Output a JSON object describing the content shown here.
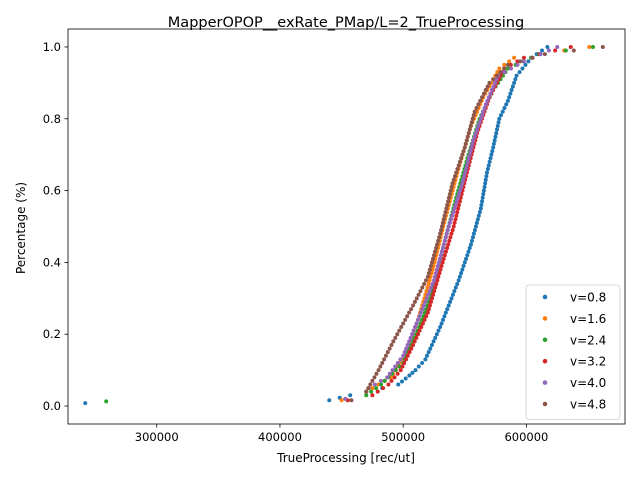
{
  "chart_data": {
    "type": "scatter",
    "title": "MapperOPOP__exRate_PMap/L=2_TrueProcessing",
    "xlabel": "TrueProcessing [rec/ut]",
    "ylabel": "Percentage (%)",
    "xlim": [
      228000,
      680000
    ],
    "ylim": [
      -0.05,
      1.05
    ],
    "xticks": [
      300000,
      400000,
      500000,
      600000
    ],
    "xtick_labels": [
      "300000",
      "400000",
      "500000",
      "600000"
    ],
    "yticks": [
      0.0,
      0.2,
      0.4,
      0.6,
      0.8,
      1.0
    ],
    "ytick_labels": [
      "0.0",
      "0.2",
      "0.4",
      "0.6",
      "0.8",
      "1.0"
    ],
    "grid": false,
    "legend_position": "bottom-right",
    "series": [
      {
        "name": "v=0.8",
        "color": "#1f77b4",
        "anchors": [
          [
            242000,
            0.008
          ],
          [
            440000,
            0.016
          ],
          [
            457000,
            0.03
          ],
          [
            496000,
            0.06
          ],
          [
            505000,
            0.085
          ],
          [
            510000,
            0.1
          ],
          [
            518000,
            0.13
          ],
          [
            530000,
            0.22
          ],
          [
            545000,
            0.35
          ],
          [
            555000,
            0.45
          ],
          [
            563000,
            0.55
          ],
          [
            568000,
            0.65
          ],
          [
            573000,
            0.72
          ],
          [
            578000,
            0.8
          ],
          [
            585000,
            0.85
          ],
          [
            592000,
            0.92
          ],
          [
            604000,
            0.97
          ],
          [
            617000,
            1.0
          ]
        ]
      },
      {
        "name": "v=1.6",
        "color": "#ff7f0e",
        "anchors": [
          [
            450000,
            0.016
          ],
          [
            470000,
            0.04
          ],
          [
            490000,
            0.08
          ],
          [
            502000,
            0.15
          ],
          [
            512000,
            0.24
          ],
          [
            524000,
            0.38
          ],
          [
            534000,
            0.52
          ],
          [
            544000,
            0.65
          ],
          [
            555000,
            0.78
          ],
          [
            565000,
            0.86
          ],
          [
            578000,
            0.94
          ],
          [
            590000,
            0.97
          ],
          [
            651000,
            1.0
          ]
        ]
      },
      {
        "name": "v=2.4",
        "color": "#2ca02c",
        "anchors": [
          [
            259000,
            0.013
          ],
          [
            470000,
            0.03
          ],
          [
            482000,
            0.06
          ],
          [
            500000,
            0.12
          ],
          [
            513000,
            0.22
          ],
          [
            522000,
            0.3
          ],
          [
            533000,
            0.45
          ],
          [
            543000,
            0.58
          ],
          [
            553000,
            0.7
          ],
          [
            562000,
            0.8
          ],
          [
            573000,
            0.88
          ],
          [
            585000,
            0.94
          ],
          [
            610000,
            0.98
          ],
          [
            654000,
            1.0
          ]
        ]
      },
      {
        "name": "v=3.2",
        "color": "#d62728",
        "anchors": [
          [
            455000,
            0.016
          ],
          [
            475000,
            0.03
          ],
          [
            488000,
            0.06
          ],
          [
            498000,
            0.1
          ],
          [
            508000,
            0.17
          ],
          [
            520000,
            0.26
          ],
          [
            532000,
            0.4
          ],
          [
            541000,
            0.5
          ],
          [
            551000,
            0.64
          ],
          [
            560000,
            0.76
          ],
          [
            570000,
            0.86
          ],
          [
            582000,
            0.94
          ],
          [
            598000,
            0.97
          ],
          [
            636000,
            1.0
          ]
        ]
      },
      {
        "name": "v=4.0",
        "color": "#9467bd",
        "anchors": [
          [
            453000,
            0.02
          ],
          [
            472000,
            0.05
          ],
          [
            487000,
            0.08
          ],
          [
            500000,
            0.14
          ],
          [
            512000,
            0.24
          ],
          [
            525000,
            0.35
          ],
          [
            537000,
            0.5
          ],
          [
            548000,
            0.62
          ],
          [
            557000,
            0.74
          ],
          [
            567000,
            0.84
          ],
          [
            577000,
            0.92
          ],
          [
            598000,
            0.96
          ],
          [
            625000,
            1.0
          ]
        ]
      },
      {
        "name": "v=4.8",
        "color": "#8c564b",
        "anchors": [
          [
            458000,
            0.016
          ],
          [
            470000,
            0.04
          ],
          [
            480000,
            0.1
          ],
          [
            492000,
            0.18
          ],
          [
            508000,
            0.28
          ],
          [
            520000,
            0.36
          ],
          [
            530000,
            0.48
          ],
          [
            540000,
            0.62
          ],
          [
            550000,
            0.72
          ],
          [
            558000,
            0.82
          ],
          [
            570000,
            0.9
          ],
          [
            585000,
            0.95
          ],
          [
            615000,
            0.98
          ],
          [
            662000,
            1.0
          ]
        ]
      }
    ]
  }
}
